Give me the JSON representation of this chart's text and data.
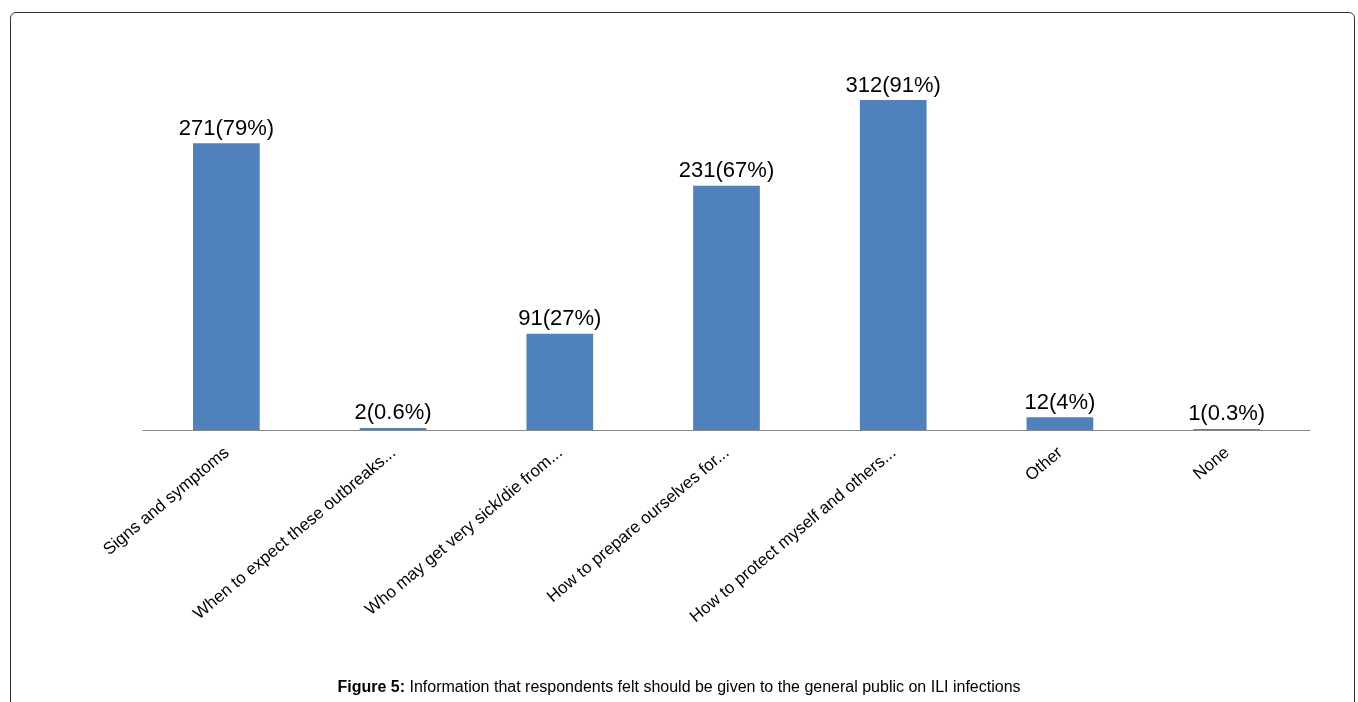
{
  "chart_data": {
    "type": "bar",
    "categories": [
      "Signs and symptoms",
      "When to expect these outbreaks...",
      "Who may get very sick/die from...",
      "How to prepare ourselves for...",
      "How to protect myself and others...",
      "Other",
      "None"
    ],
    "values": [
      271,
      2,
      91,
      231,
      312,
      12,
      1
    ],
    "value_labels": [
      "271(79%)",
      "2(0.6%)",
      "91(27%)",
      "231(67%)",
      "312(91%)",
      "12(4%)",
      "1(0.3%)"
    ],
    "color": "#4f81bd",
    "annotations": [
      "Figure 5: Information that respondents felt should be given to the general public on ILI infections"
    ]
  }
}
